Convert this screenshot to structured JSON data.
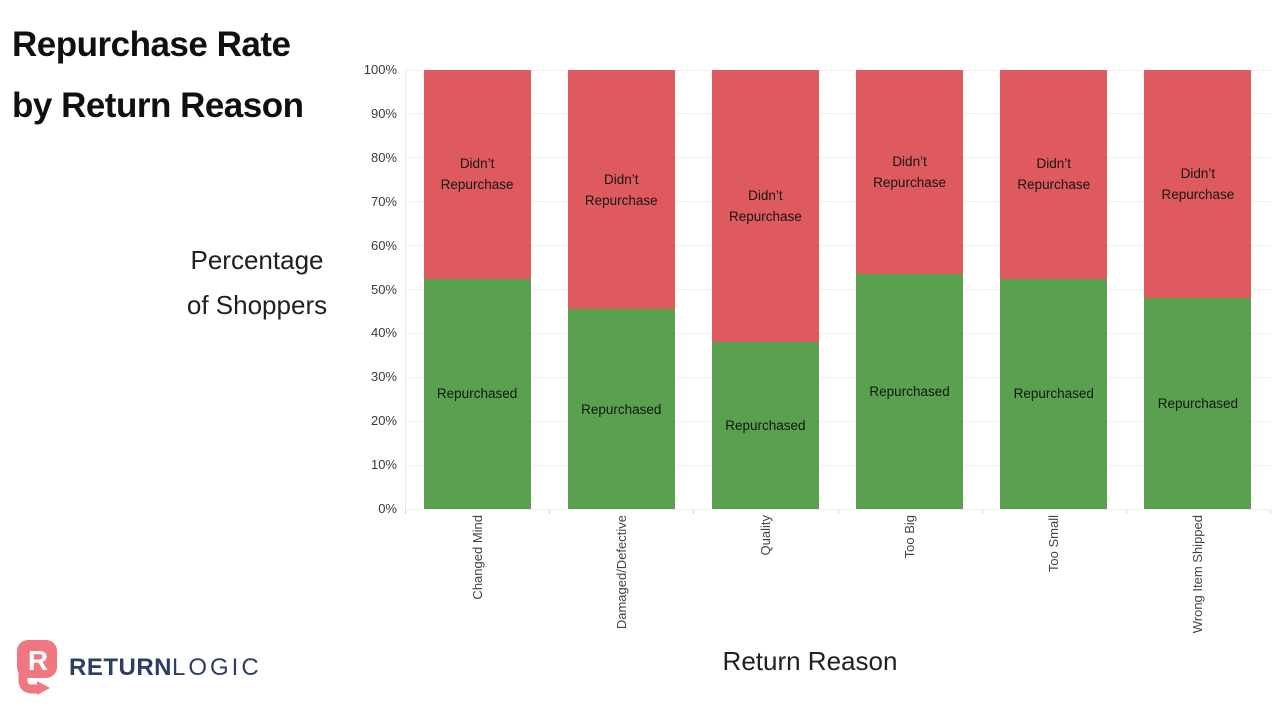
{
  "title": {
    "line1": "Repurchase Rate",
    "line2": "by Return Reason"
  },
  "y_axis_title": {
    "line1": "Percentage",
    "line2": "of Shoppers"
  },
  "x_axis_title": "Return Reason",
  "logo": {
    "word1": "RETURN",
    "word2": "LOGIC",
    "icon": "returnlogic-r-arrow-icon"
  },
  "colors": {
    "repurchased_green": "#59A14F",
    "didnt_repurchase_red": "#DF5A5E",
    "logo_navy": "#2C3E63",
    "logo_salmon": "#F0767F",
    "gridline": "#F0F0F0",
    "axis_text": "#3A3A3A",
    "segment_label_text": "#161616"
  },
  "chart_data": {
    "type": "bar",
    "stacked": true,
    "orientation": "vertical",
    "title": "Repurchase Rate by Return Reason",
    "xlabel": "Return Reason",
    "ylabel": "Percentage of Shoppers",
    "categories": [
      "Changed Mind",
      "Damaged/Defective",
      "Quality",
      "Too Big",
      "Too Small",
      "Wrong Item Shipped"
    ],
    "series": [
      {
        "name": "Repurchased",
        "color": "#59A14F",
        "values": [
          52.5,
          45.5,
          38,
          53.5,
          52.5,
          48
        ]
      },
      {
        "name": "Didn’t Repurchase",
        "color": "#DF5A5E",
        "values": [
          47.5,
          54.5,
          62,
          46.5,
          47.5,
          52
        ]
      }
    ],
    "value_unit": "%",
    "ylim": [
      0,
      100
    ],
    "y_ticks": [
      "0%",
      "10%",
      "20%",
      "30%",
      "40%",
      "50%",
      "60%",
      "70%",
      "80%",
      "90%",
      "100%"
    ],
    "grid": "horizontal",
    "legend": "none — segment names labeled inside bars"
  }
}
